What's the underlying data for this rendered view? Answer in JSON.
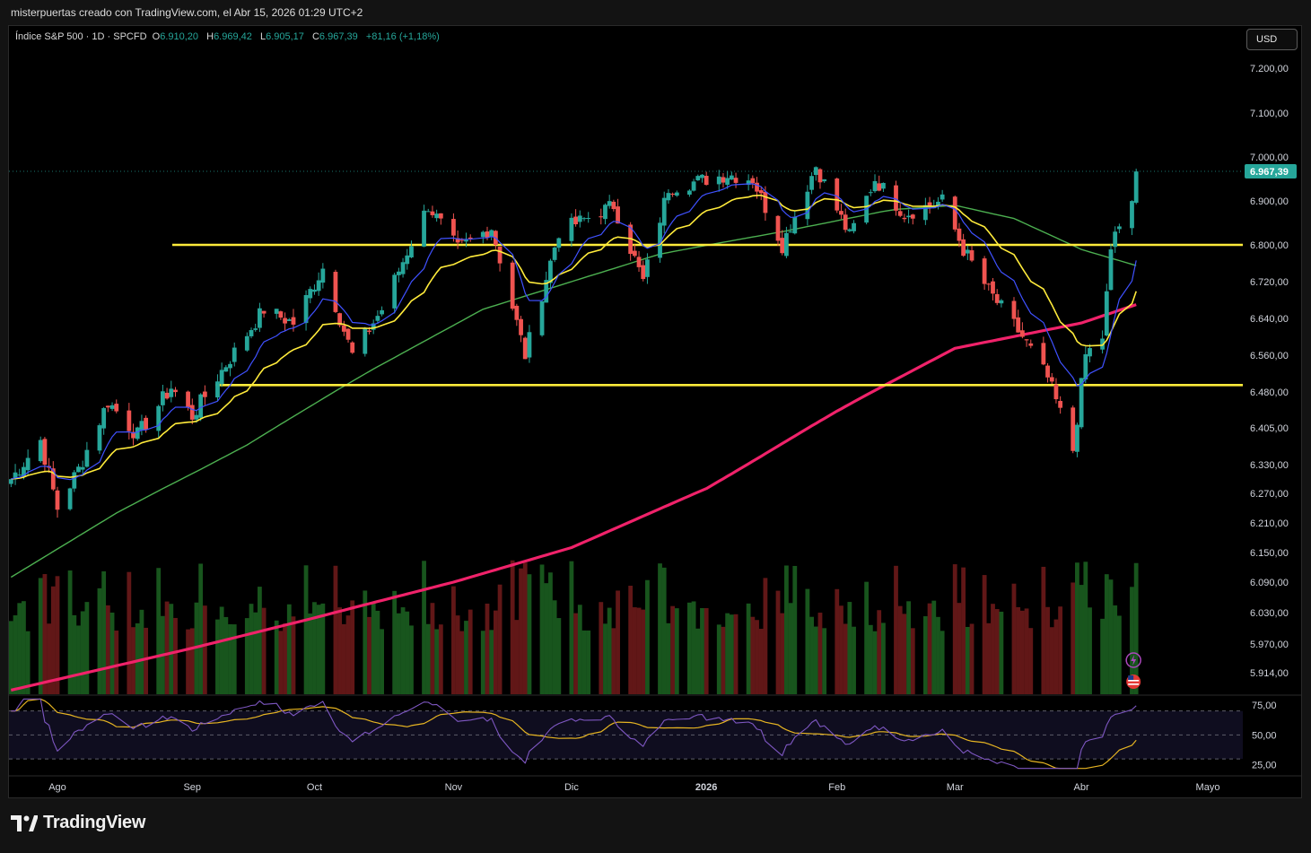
{
  "header": {
    "credit": "misterpuertas creado con TradingView.com, el Abr 15, 2026 01:29 UTC+2"
  },
  "legend": {
    "symbol": "Índice S&P 500 · 1D · SPCFD",
    "o_label": "O",
    "o_value": "6.910,20",
    "h_label": "H",
    "h_value": "6.969,42",
    "l_label": "L",
    "l_value": "6.905,17",
    "c_label": "C",
    "c_value": "6.967,39",
    "change": "+81,16 (+1,18%)"
  },
  "currency_button": "USD",
  "brand": "TradingView",
  "colors": {
    "up": "#26a69a",
    "down": "#ef5350",
    "ema_fast": "#3f51ff",
    "ema_mid": "#ffeb3b",
    "ma_50": "#4caf50",
    "ma_200": "#f0226a",
    "level_line": "#ffeb3b",
    "rsi": "#7e57c2",
    "rsi_ma": "#e6b422"
  },
  "chart_data": {
    "type": "candlestick",
    "price_axis_labels": [
      {
        "value": 7200,
        "label": "7.200,00"
      },
      {
        "value": 7100,
        "label": "7.100,00"
      },
      {
        "value": 7000,
        "label": "7.000,00"
      },
      {
        "value": 6900,
        "label": "6.900,00"
      },
      {
        "value": 6800,
        "label": "6.800,00"
      },
      {
        "value": 6720,
        "label": "6.720,00"
      },
      {
        "value": 6640,
        "label": "6.640,00"
      },
      {
        "value": 6560,
        "label": "6.560,00"
      },
      {
        "value": 6480,
        "label": "6.480,00"
      },
      {
        "value": 6405,
        "label": "6.405,00"
      },
      {
        "value": 6330,
        "label": "6.330,00"
      },
      {
        "value": 6270,
        "label": "6.270,00"
      },
      {
        "value": 6210,
        "label": "6.210,00"
      },
      {
        "value": 6150,
        "label": "6.150,00"
      },
      {
        "value": 6090,
        "label": "6.090,00"
      },
      {
        "value": 6030,
        "label": "6.030,00"
      },
      {
        "value": 5970,
        "label": "5.970,00"
      },
      {
        "value": 5914,
        "label": "5.914,00"
      }
    ],
    "last_price": {
      "value": 6967.39,
      "label": "6.967,39"
    },
    "time_axis_labels": [
      {
        "date": "2025-08-01",
        "label": "Ago"
      },
      {
        "date": "2025-09-02",
        "label": "Sep"
      },
      {
        "date": "2025-10-01",
        "label": "Oct"
      },
      {
        "date": "2025-11-03",
        "label": "Nov"
      },
      {
        "date": "2025-12-01",
        "label": "Dic"
      },
      {
        "date": "2026-01-02",
        "label": "2026"
      },
      {
        "date": "2026-02-02",
        "label": "Feb"
      },
      {
        "date": "2026-03-02",
        "label": "Mar"
      },
      {
        "date": "2026-04-01",
        "label": "Abr"
      },
      {
        "date": "2026-05-01",
        "label": "Mayo"
      }
    ],
    "horizontal_levels": [
      6800,
      6495
    ],
    "price_anchors": [
      [
        "2025-07-21",
        6300
      ],
      [
        "2025-07-28",
        6380
      ],
      [
        "2025-08-01",
        6240
      ],
      [
        "2025-08-06",
        6320
      ],
      [
        "2025-08-13",
        6460
      ],
      [
        "2025-08-20",
        6390
      ],
      [
        "2025-08-28",
        6490
      ],
      [
        "2025-09-02",
        6430
      ],
      [
        "2025-09-10",
        6540
      ],
      [
        "2025-09-19",
        6660
      ],
      [
        "2025-09-26",
        6630
      ],
      [
        "2025-10-03",
        6750
      ],
      [
        "2025-10-10",
        6560
      ],
      [
        "2025-10-17",
        6660
      ],
      [
        "2025-10-28",
        6890
      ],
      [
        "2025-11-04",
        6790
      ],
      [
        "2025-11-12",
        6840
      ],
      [
        "2025-11-20",
        6560
      ],
      [
        "2025-11-28",
        6830
      ],
      [
        "2025-12-11",
        6890
      ],
      [
        "2025-12-18",
        6720
      ],
      [
        "2025-12-24",
        6930
      ],
      [
        "2026-01-07",
        6960
      ],
      [
        "2026-01-13",
        6950
      ],
      [
        "2026-01-20",
        6800
      ],
      [
        "2026-01-28",
        6980
      ],
      [
        "2026-02-05",
        6820
      ],
      [
        "2026-02-11",
        6950
      ],
      [
        "2026-02-18",
        6870
      ],
      [
        "2026-02-27",
        6900
      ],
      [
        "2026-03-04",
        6790
      ],
      [
        "2026-03-10",
        6700
      ],
      [
        "2026-03-18",
        6600
      ],
      [
        "2026-03-24",
        6510
      ],
      [
        "2026-03-30",
        6360
      ],
      [
        "2026-04-02",
        6560
      ],
      [
        "2026-04-06",
        6600
      ],
      [
        "2026-04-08",
        6780
      ],
      [
        "2026-04-09",
        6830
      ],
      [
        "2026-04-13",
        6886
      ],
      [
        "2026-04-14",
        6967
      ]
    ],
    "ma200_anchors": [
      [
        "2025-07-21",
        5880
      ],
      [
        "2025-09-01",
        5960
      ],
      [
        "2025-10-01",
        6020
      ],
      [
        "2025-11-03",
        6090
      ],
      [
        "2025-12-01",
        6160
      ],
      [
        "2026-01-02",
        6280
      ],
      [
        "2026-02-02",
        6440
      ],
      [
        "2026-03-02",
        6575
      ],
      [
        "2026-04-01",
        6630
      ],
      [
        "2026-04-14",
        6670
      ]
    ],
    "ma50_anchors": [
      [
        "2025-07-21",
        6100
      ],
      [
        "2025-08-15",
        6230
      ],
      [
        "2025-09-15",
        6370
      ],
      [
        "2025-10-15",
        6530
      ],
      [
        "2025-11-10",
        6660
      ],
      [
        "2025-12-01",
        6720
      ],
      [
        "2025-12-22",
        6780
      ],
      [
        "2026-01-20",
        6830
      ],
      [
        "2026-02-15",
        6880
      ],
      [
        "2026-03-02",
        6890
      ],
      [
        "2026-03-16",
        6860
      ],
      [
        "2026-04-01",
        6790
      ],
      [
        "2026-04-14",
        6755
      ]
    ],
    "volume_axis": "relative",
    "rsi": {
      "length": 14,
      "ma_length": 14,
      "levels": [
        70,
        50,
        30
      ],
      "axis_labels": [
        {
          "value": 75,
          "label": "75,00"
        },
        {
          "value": 50,
          "label": "50,00"
        },
        {
          "value": 25,
          "label": "25,00"
        }
      ]
    },
    "grid": false
  }
}
